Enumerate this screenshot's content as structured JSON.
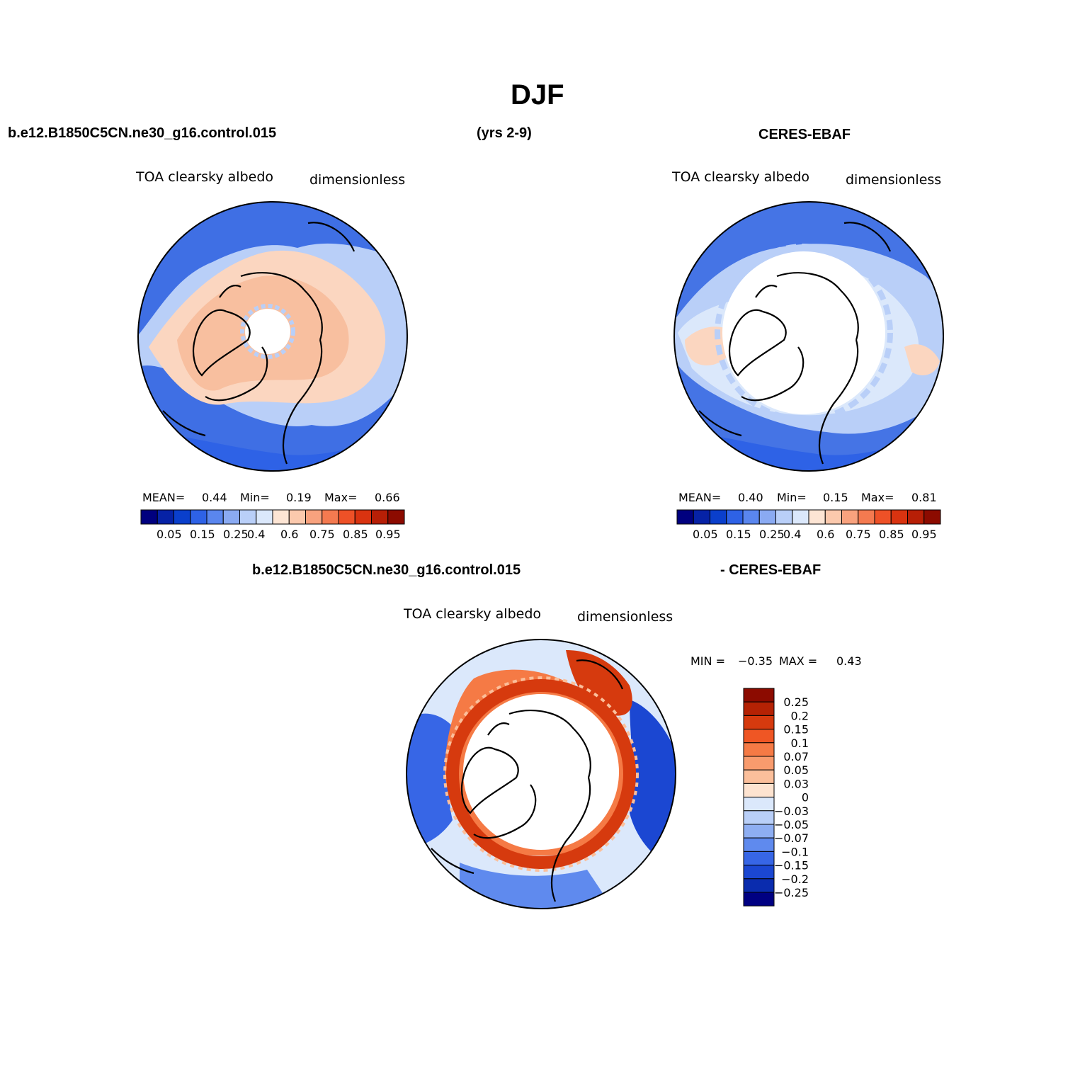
{
  "page": {
    "title": "DJF",
    "left_header": "b.e12.B1850C5CN.ne30_g16.control.015",
    "center_header": "(yrs 2-9)",
    "right_header": "CERES-EBAF"
  },
  "panels": [
    {
      "variable": "TOA clearsky albedo",
      "units": "dimensionless",
      "mean_label": "MEAN=",
      "mean_value": "0.44",
      "min_label": "Min=",
      "min_value": "0.19",
      "max_label": "Max=",
      "max_value": "0.66"
    },
    {
      "variable": "TOA clearsky albedo",
      "units": "dimensionless",
      "mean_label": "MEAN=",
      "mean_value": "0.40",
      "min_label": "Min=",
      "min_value": "0.15",
      "max_label": "Max=",
      "max_value": "0.81"
    }
  ],
  "abs_colorbar": {
    "colors": [
      "#00007f",
      "#0622a6",
      "#0a3fcc",
      "#2e62e6",
      "#5a86ee",
      "#8aaaf2",
      "#b9cff8",
      "#dbe8fb",
      "#fde5d4",
      "#fbc9ad",
      "#f8a27e",
      "#f47a50",
      "#ee5127",
      "#d93310",
      "#b71f06",
      "#8c0b00"
    ],
    "labels": [
      "0.05",
      "0.15",
      "0.25",
      "0.4",
      "0.6",
      "0.75",
      "0.85",
      "0.95"
    ]
  },
  "diff": {
    "header_left": "b.e12.B1850C5CN.ne30_g16.control.015",
    "header_right": "- CERES-EBAF",
    "variable": "TOA clearsky albedo",
    "units": "dimensionless",
    "min_label": "MIN =",
    "min_value": "−0.35",
    "max_label": "MAX =",
    "max_value": "0.43",
    "colorbar": {
      "colors": [
        "#8c0b00",
        "#b52204",
        "#d63a0e",
        "#ef5624",
        "#f57a45",
        "#f89b6d",
        "#fbbf9b",
        "#fde3d0",
        "#dbe8fb",
        "#b9cff8",
        "#8eaef2",
        "#5f8aee",
        "#3766e6",
        "#1b47d2",
        "#0a2cae",
        "#000082"
      ],
      "labels": [
        "0.25",
        "0.2",
        "0.15",
        "0.1",
        "0.07",
        "0.05",
        "0.03",
        "0",
        "−0.03",
        "−0.05",
        "−0.07",
        "−0.1",
        "−0.15",
        "−0.2",
        "−0.25"
      ]
    }
  }
}
